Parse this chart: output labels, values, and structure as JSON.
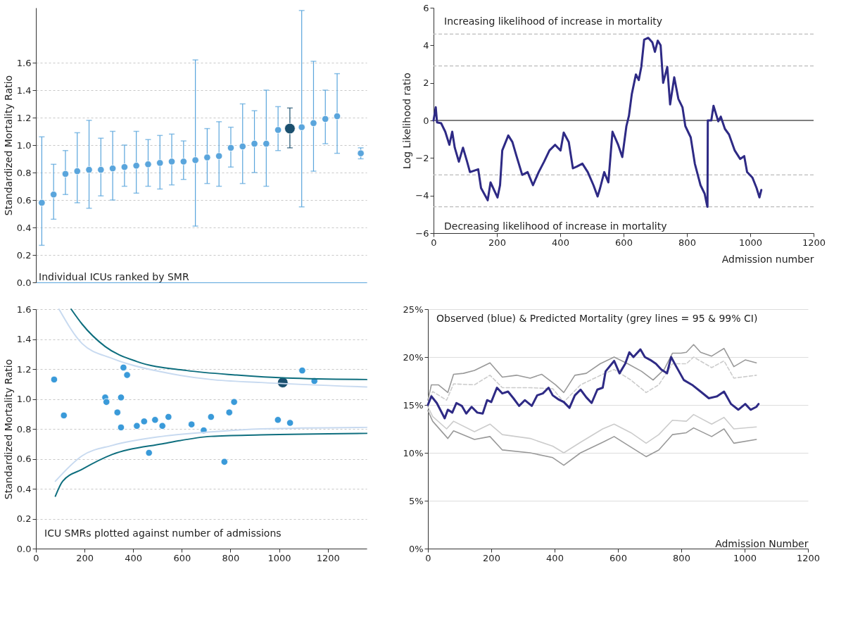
{
  "chart_data": [
    {
      "type": "scatter",
      "ylabel": "Standardized Mortality Ratio",
      "annotations": [
        "Individual ICUs ranked by SMR"
      ],
      "categories": [
        null,
        null,
        null,
        null,
        null,
        null,
        null,
        null,
        null,
        null,
        null,
        null,
        null,
        null,
        null,
        null,
        null,
        null,
        null,
        null,
        null,
        null,
        null,
        null,
        null,
        null,
        null,
        null
      ],
      "ylim": [
        0,
        2
      ],
      "yticks": [
        {
          "value": 0,
          "label": "0.0"
        },
        0.2,
        0.4,
        0.6,
        0.8,
        {
          "value": 1,
          "label": "1.0"
        },
        1.2,
        1.4,
        1.6
      ],
      "grid": "y",
      "tick_labels": "y",
      "marker": "circle",
      "series": [
        {
          "color": "#5aa5dc",
          "values": [
            0.58,
            0.64,
            0.79,
            0.81,
            0.82,
            0.82,
            0.83,
            0.84,
            0.85,
            0.86,
            0.87,
            0.88,
            0.88,
            0.89,
            0.91,
            0.92,
            0.98,
            0.99,
            1.01,
            1.01,
            1.11,
            null,
            1.13,
            1.16,
            1.19,
            1.21,
            null,
            0.94
          ],
          "errors": [
            [
              0.27,
              1.06
            ],
            [
              0.46,
              0.86
            ],
            [
              0.64,
              0.96
            ],
            [
              0.58,
              1.09
            ],
            [
              0.54,
              1.18
            ],
            [
              0.63,
              1.05
            ],
            [
              0.6,
              1.1
            ],
            [
              0.7,
              1.0
            ],
            [
              0.65,
              1.1
            ],
            [
              0.7,
              1.04
            ],
            [
              0.68,
              1.07
            ],
            [
              0.71,
              1.08
            ],
            [
              0.75,
              1.03
            ],
            [
              0.41,
              1.62
            ],
            [
              0.72,
              1.12
            ],
            [
              0.7,
              1.17
            ],
            [
              0.84,
              1.13
            ],
            [
              0.72,
              1.3
            ],
            [
              0.8,
              1.25
            ],
            [
              0.7,
              1.4
            ],
            [
              0.96,
              1.28
            ],
            null,
            [
              0.55,
              1.98
            ],
            [
              0.81,
              1.61
            ],
            [
              1.01,
              1.4
            ],
            [
              0.94,
              1.52
            ],
            null,
            [
              0.9,
              0.98
            ]
          ]
        },
        {
          "color": "#1a4f6e",
          "values": [
            null,
            null,
            null,
            null,
            null,
            null,
            null,
            null,
            null,
            null,
            null,
            null,
            null,
            null,
            null,
            null,
            null,
            null,
            null,
            null,
            null,
            1.12,
            null,
            null,
            null,
            null,
            null,
            null
          ],
          "errors": [
            null,
            null,
            null,
            null,
            null,
            null,
            null,
            null,
            null,
            null,
            null,
            null,
            null,
            null,
            null,
            null,
            null,
            null,
            null,
            null,
            null,
            [
              0.98,
              1.27
            ],
            null,
            null,
            null,
            null,
            null,
            null
          ]
        }
      ]
    },
    {
      "type": "line",
      "ylabel": "Log Likelihood ratio",
      "xlabel": "Admission number",
      "annotations": [
        "Increasing likelihood of increase in mortality",
        "Decreasing  likelihood of increase in mortality"
      ],
      "xlim": [
        0,
        1200
      ],
      "xticks": [
        0,
        200,
        400,
        600,
        800,
        1000,
        1200
      ],
      "ylim": [
        -6,
        6
      ],
      "yticks": [
        {
          "value": -6,
          "label": "−6"
        },
        {
          "value": -4,
          "label": "−4"
        },
        {
          "value": -2,
          "label": "−2"
        },
        0,
        2,
        4,
        6
      ],
      "ref_lines": [
        {
          "axis": "y",
          "value": 0,
          "color": "#000000"
        },
        {
          "axis": "y",
          "value": 4.6,
          "color": "#bbbbbb",
          "line_style": "dashed"
        },
        {
          "axis": "y",
          "value": 2.9,
          "color": "#bbbbbb",
          "line_style": "dashed"
        },
        {
          "axis": "y",
          "value": -2.9,
          "color": "#bbbbbb",
          "line_style": "dashed"
        },
        {
          "axis": "y",
          "value": -4.6,
          "color": "#bbbbbb",
          "line_style": "dashed"
        }
      ],
      "series": [
        {
          "color": "#2e2a85",
          "x": [
            0,
            7,
            11,
            24,
            37,
            50,
            59,
            67,
            80,
            93,
            106,
            115,
            141,
            150,
            171,
            180,
            202,
            210,
            217,
            236,
            249,
            262,
            280,
            297,
            314,
            332,
            349,
            366,
            384,
            401,
            411,
            427,
            440,
            453,
            470,
            487,
            505,
            518,
            526,
            539,
            552,
            565,
            583,
            596,
            609,
            617,
            626,
            639,
            648,
            656,
            665,
            678,
            691,
            699,
            708,
            717,
            725,
            738,
            747,
            760,
            773,
            786,
            795,
            812,
            825,
            843,
            856,
            864,
            865,
            866,
            877,
            884,
            899,
            907,
            920,
            933,
            951,
            968,
            981,
            990,
            1007,
            1020,
            1029,
            1035
          ],
          "values": [
            0,
            0.7,
            -0.1,
            -0.15,
            -0.6,
            -1.3,
            -0.6,
            -1.45,
            -2.2,
            -1.45,
            -2.2,
            -2.75,
            -2.6,
            -3.6,
            -4.25,
            -3.3,
            -4.1,
            -3.45,
            -1.6,
            -0.8,
            -1.15,
            -1.9,
            -2.9,
            -2.75,
            -3.45,
            -2.75,
            -2.2,
            -1.6,
            -1.3,
            -1.6,
            -0.65,
            -1.15,
            -2.55,
            -2.45,
            -2.3,
            -2.75,
            -3.45,
            -4.05,
            -3.6,
            -2.75,
            -3.3,
            -0.6,
            -1.3,
            -1.95,
            -0.3,
            0.25,
            1.4,
            2.45,
            2.15,
            2.85,
            4.3,
            4.4,
            4.15,
            3.65,
            4.25,
            4.0,
            2.0,
            2.85,
            0.85,
            2.3,
            1.15,
            0.7,
            -0.3,
            -0.9,
            -2.3,
            -3.45,
            -3.9,
            -4.55,
            -4.6,
            0,
            0,
            0.78,
            -0.05,
            0.2,
            -0.45,
            -0.75,
            -1.6,
            -2.05,
            -1.9,
            -2.75,
            -3.05,
            -3.6,
            -4.1,
            -3.7
          ]
        }
      ]
    },
    {
      "type": "scatter",
      "ylabel": "Standardized Mortality Ratio",
      "annotations": [
        "ICU SMRs plotted against number of admissions"
      ],
      "xlim": [
        0,
        1360
      ],
      "xticks": [
        0,
        200,
        400,
        600,
        800,
        1000,
        1200
      ],
      "ylim": [
        0,
        1.6
      ],
      "yticks": [
        {
          "value": 0,
          "label": "0.0"
        },
        0.2,
        0.4,
        0.6,
        0.8,
        {
          "value": 1,
          "label": "1.0"
        },
        1.2,
        1.4,
        1.6
      ],
      "grid": "y",
      "series": [
        {
          "marker": "circle",
          "color": "#3a9ad9",
          "x": [
            75,
            115,
            285,
            290,
            335,
            350,
            350,
            360,
            375,
            415,
            445,
            465,
            490,
            520,
            545,
            640,
            690,
            720,
            775,
            795,
            815,
            995,
            1045,
            1095,
            1145
          ],
          "values": [
            1.13,
            0.89,
            1.01,
            0.98,
            0.91,
            1.01,
            0.81,
            1.21,
            1.16,
            0.82,
            0.85,
            0.64,
            0.86,
            0.82,
            0.88,
            0.83,
            0.79,
            0.88,
            0.58,
            0.91,
            0.98,
            0.86,
            0.84,
            1.19,
            1.12
          ]
        },
        {
          "marker": "circle",
          "color": "#1a4f6e",
          "x": [
            1015
          ],
          "values": [
            1.11
          ]
        },
        {
          "type": "line",
          "color": "#0e6e7e",
          "x": [
            145,
            190,
            285,
            415,
            620,
            825,
            1030,
            1360
          ],
          "values": [
            1.6,
            1.5,
            1.35,
            1.25,
            1.19,
            1.16,
            1.14,
            1.13
          ]
        },
        {
          "type": "line",
          "color": "#0e6e7e",
          "x": [
            80,
            110,
            190,
            315,
            520,
            720,
            925,
            1360
          ],
          "values": [
            0.35,
            0.45,
            0.53,
            0.63,
            0.7,
            0.75,
            0.76,
            0.77
          ]
        },
        {
          "type": "line",
          "color": "#c8daf0",
          "x": [
            95,
            190,
            315,
            520,
            720,
            925,
            1360
          ],
          "values": [
            1.6,
            1.37,
            1.27,
            1.18,
            1.13,
            1.11,
            1.08
          ]
        },
        {
          "type": "line",
          "color": "#c8daf0",
          "x": [
            80,
            190,
            315,
            520,
            720,
            925,
            1360
          ],
          "values": [
            0.45,
            0.62,
            0.69,
            0.75,
            0.78,
            0.8,
            0.81
          ]
        }
      ]
    },
    {
      "type": "line",
      "xlabel": "Admission Number",
      "annotations": [
        "Observed (blue) & Predicted Mortality (grey lines = 95 & 99% CI)"
      ],
      "xlim": [
        0,
        1200
      ],
      "xticks": [
        0,
        200,
        400,
        600,
        800,
        1000,
        1200
      ],
      "ylim": [
        0,
        25
      ],
      "yticks": [
        {
          "value": 0,
          "label": "0%"
        },
        {
          "value": 5,
          "label": "5%"
        },
        {
          "value": 10,
          "label": "10%"
        },
        {
          "value": 15,
          "label": "15%"
        },
        {
          "value": 20,
          "label": "20%"
        },
        {
          "value": 25,
          "label": "25%"
        }
      ],
      "grid": "y",
      "series": [
        {
          "color": "#2e2a85",
          "x": [
            0,
            11,
            28,
            53,
            63,
            77,
            90,
            107,
            121,
            138,
            156,
            173,
            187,
            200,
            218,
            235,
            253,
            270,
            288,
            306,
            328,
            345,
            363,
            381,
            394,
            411,
            429,
            447,
            464,
            482,
            500,
            517,
            535,
            552,
            561,
            588,
            605,
            623,
            636,
            649,
            671,
            685,
            702,
            720,
            737,
            755,
            768,
            781,
            808,
            834,
            861,
            887,
            913,
            935,
            957,
            980,
            1002,
            1019,
            1037,
            1044
          ],
          "values": [
            15.0,
            15.9,
            15.2,
            13.6,
            14.5,
            14.2,
            15.2,
            14.9,
            14.1,
            14.8,
            14.2,
            14.1,
            15.5,
            15.3,
            16.8,
            16.2,
            16.4,
            15.7,
            14.9,
            15.5,
            14.9,
            16.0,
            16.2,
            16.8,
            16.0,
            15.6,
            15.3,
            14.7,
            16.0,
            16.6,
            15.8,
            15.2,
            16.6,
            16.8,
            18.5,
            19.6,
            18.3,
            19.3,
            20.5,
            20.0,
            20.8,
            20.0,
            19.7,
            19.3,
            18.7,
            18.3,
            20.0,
            19.2,
            17.6,
            17.1,
            16.4,
            15.7,
            15.9,
            16.4,
            15.1,
            14.5,
            15.1,
            14.5,
            14.8,
            15.1
          ]
        },
        {
          "color": "#999999",
          "x": [
            0,
            11,
            33,
            63,
            81,
            112,
            147,
            196,
            235,
            280,
            323,
            359,
            403,
            429,
            464,
            500,
            544,
            588,
            631,
            675,
            711,
            746,
            772,
            799,
            816,
            839,
            861,
            896,
            935,
            966,
            1002,
            1037
          ],
          "values": [
            15.5,
            17.1,
            17.1,
            16.3,
            18.2,
            18.3,
            18.6,
            19.4,
            17.9,
            18.1,
            17.8,
            18.2,
            17.1,
            16.3,
            18.1,
            18.3,
            19.3,
            20.0,
            19.3,
            18.5,
            17.6,
            18.7,
            20.4,
            20.4,
            20.5,
            21.3,
            20.5,
            20.1,
            20.9,
            19.0,
            19.7,
            19.4
          ]
        },
        {
          "color": "#cccccc",
          "line_style": "dashed",
          "x": [
            0,
            15,
            59,
            81,
            147,
            196,
            235,
            323,
            394,
            429,
            482,
            552,
            588,
            641,
            689,
            729,
            772,
            816,
            839,
            896,
            935,
            966,
            1037
          ],
          "values": [
            15.2,
            16.4,
            15.5,
            17.2,
            17.1,
            18.1,
            16.8,
            16.8,
            16.7,
            15.3,
            17.1,
            18.2,
            18.7,
            17.6,
            16.3,
            17.1,
            19.3,
            19.3,
            20.0,
            18.9,
            19.6,
            17.8,
            18.1
          ]
        },
        {
          "color": "#cccccc",
          "x": [
            0,
            15,
            59,
            81,
            147,
            196,
            235,
            323,
            394,
            429,
            482,
            552,
            588,
            641,
            689,
            729,
            772,
            816,
            839,
            896,
            935,
            966,
            1037
          ],
          "values": [
            14.8,
            13.8,
            12.5,
            13.3,
            12.2,
            13.0,
            11.9,
            11.5,
            10.7,
            10.0,
            11.1,
            12.5,
            13.0,
            12.1,
            11.0,
            11.9,
            13.4,
            13.3,
            14.0,
            13.0,
            13.7,
            12.5,
            12.7
          ]
        },
        {
          "color": "#999999",
          "x": [
            0,
            15,
            63,
            81,
            147,
            196,
            235,
            323,
            394,
            429,
            482,
            552,
            588,
            641,
            689,
            729,
            772,
            816,
            839,
            896,
            935,
            966,
            1037
          ],
          "values": [
            14.4,
            13.3,
            11.5,
            12.3,
            11.4,
            11.7,
            10.3,
            10.0,
            9.5,
            8.7,
            10.0,
            11.1,
            11.7,
            10.6,
            9.6,
            10.3,
            11.9,
            12.1,
            12.6,
            11.7,
            12.5,
            11.0,
            11.4
          ]
        }
      ]
    }
  ]
}
